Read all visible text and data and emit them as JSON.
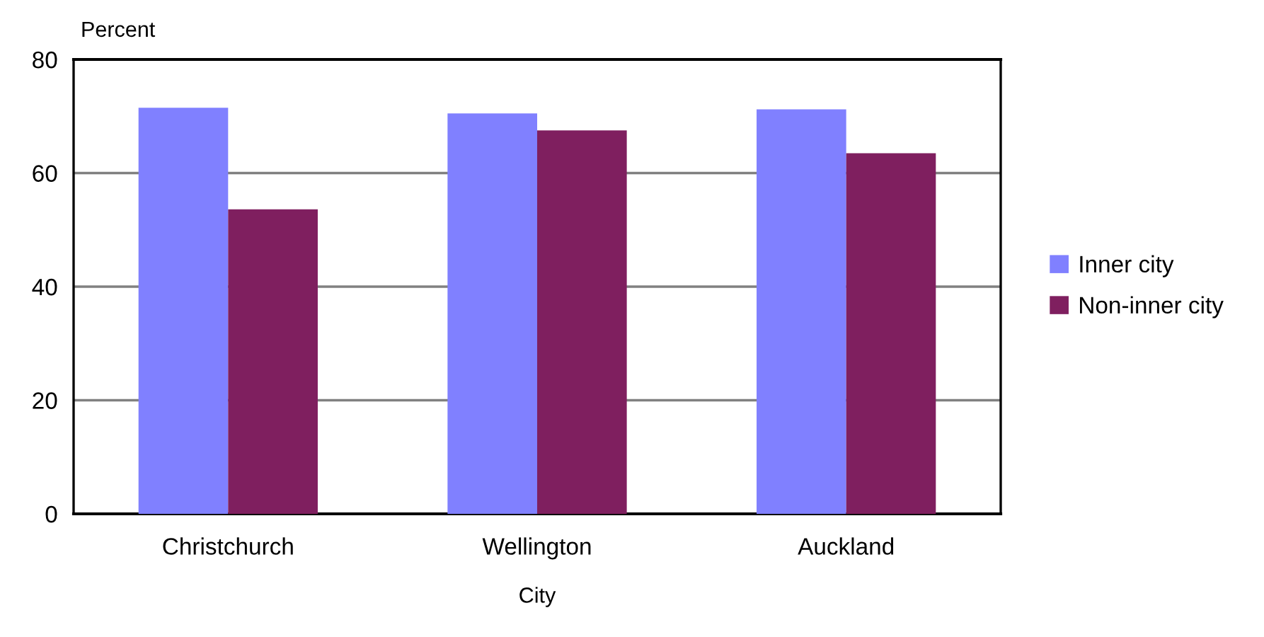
{
  "chart_data": {
    "type": "bar",
    "ylabel": "Percent",
    "xlabel": "City",
    "categories": [
      "Christchurch",
      "Wellington",
      "Auckland"
    ],
    "series": [
      {
        "name": "Inner city",
        "color": "#8080ff",
        "values": [
          71.5,
          70.5,
          71.2
        ]
      },
      {
        "name": "Non-inner city",
        "color": "#7f1f5f",
        "values": [
          53.6,
          67.5,
          63.5
        ]
      }
    ],
    "ylim": [
      0,
      80
    ],
    "yticks": [
      0,
      20,
      40,
      60,
      80
    ],
    "grid": "y",
    "legend": "right"
  }
}
